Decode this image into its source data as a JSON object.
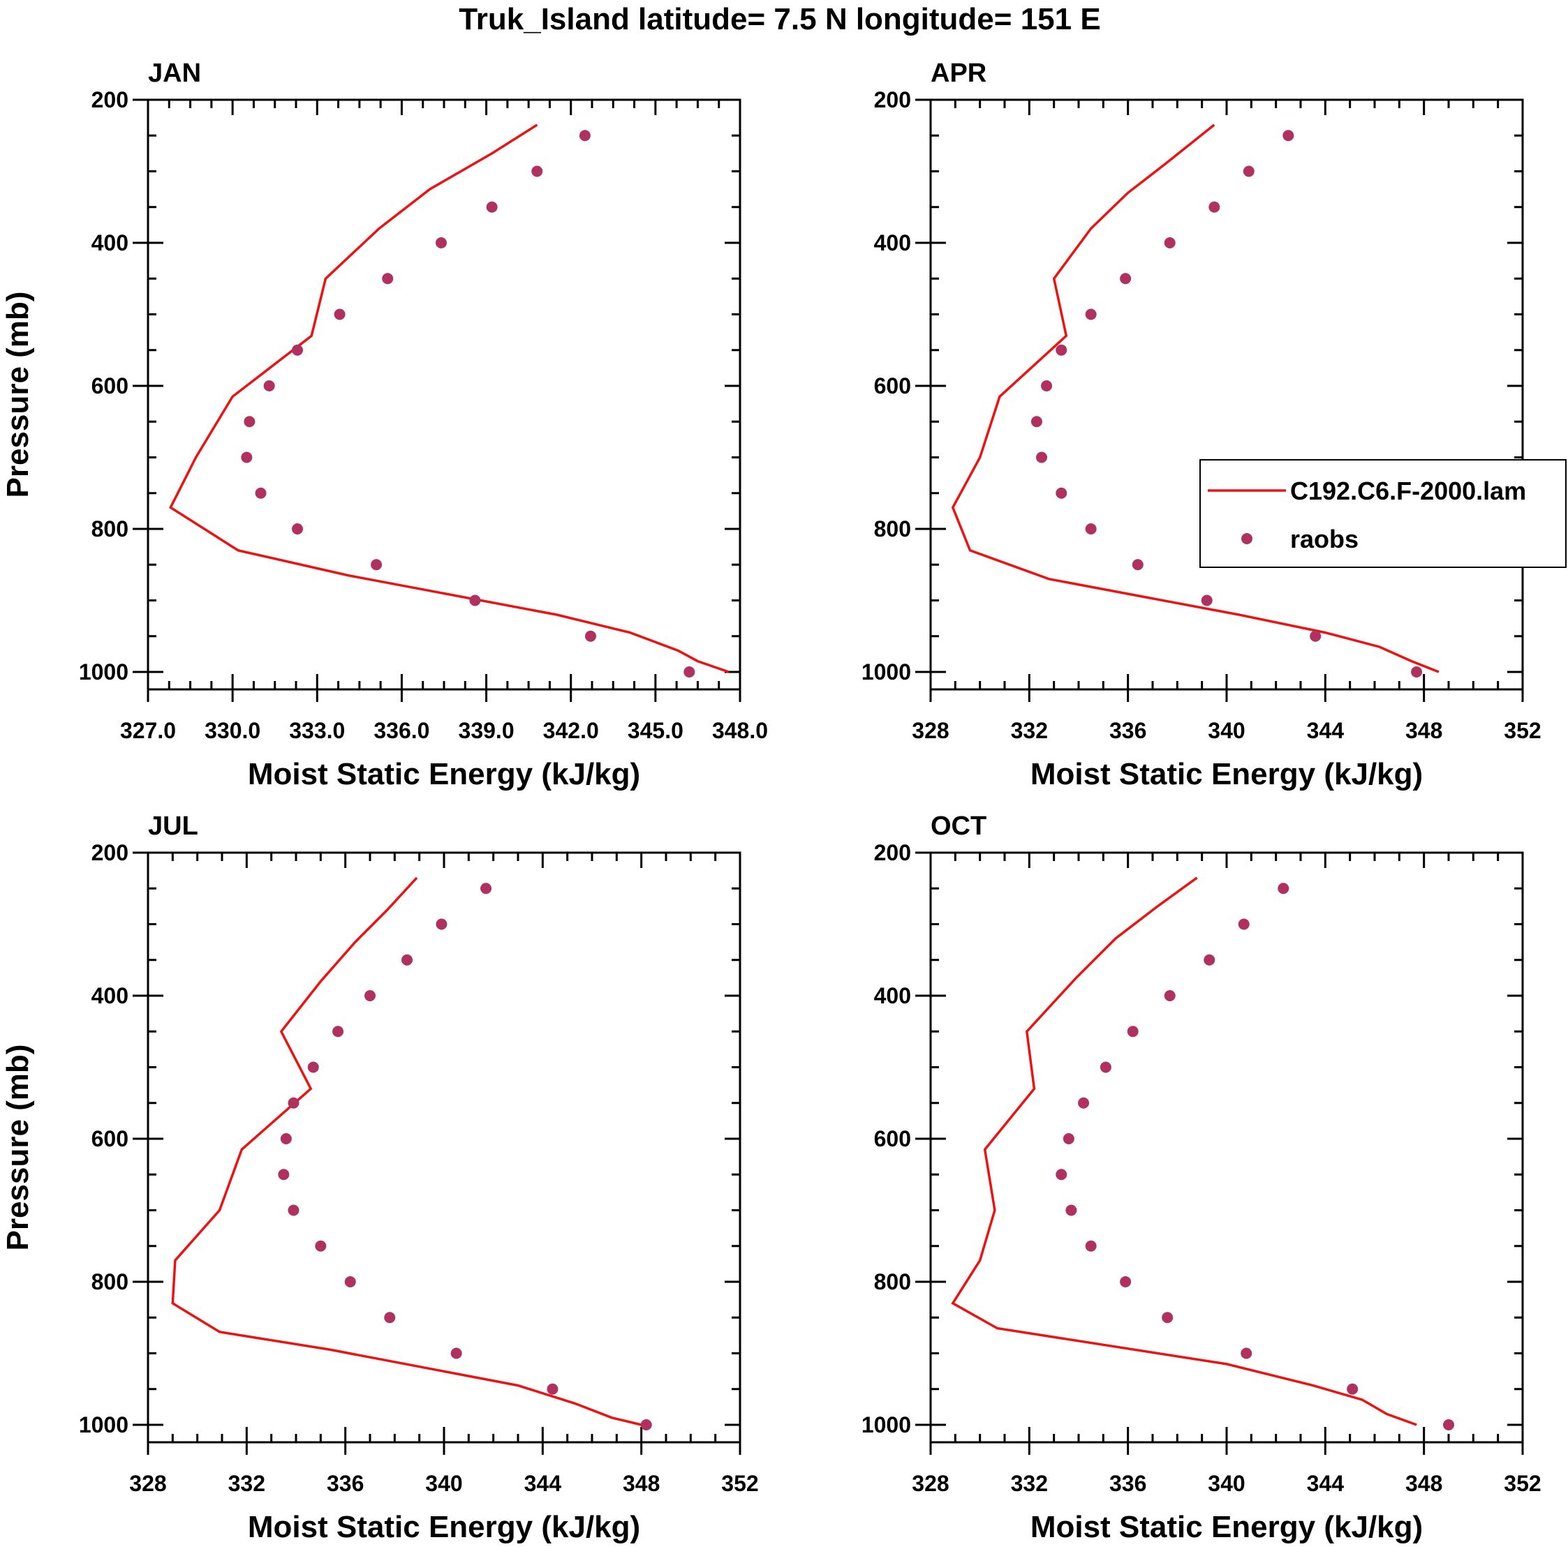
{
  "title": "Truk_Island  latitude= 7.5 N longitude= 151 E",
  "colors": {
    "model": "#ee1111",
    "obs": "#b03060",
    "axis": "#000000"
  },
  "legend": {
    "model_label": "C192.C6.F-2000.lam",
    "obs_label": "raobs",
    "location": "right side of APR panel"
  },
  "chart_data": [
    {
      "type": "line",
      "panel": "JAN",
      "xlabel": "Moist Static Energy (kJ/kg)",
      "ylabel": "Pressure (mb)",
      "xlim": [
        327.0,
        348.0
      ],
      "xticks": [
        327,
        330,
        333,
        336,
        339,
        342,
        345,
        348
      ],
      "xtick_labels": [
        "327.0",
        "330.0",
        "333.0",
        "336.0",
        "339.0",
        "342.0",
        "345.0",
        "348.0"
      ],
      "ylim": [
        1000,
        200
      ],
      "yticks": [
        200,
        400,
        600,
        800,
        1000
      ],
      "ytick_labels": [
        "200",
        "400",
        "600",
        "800",
        "1000"
      ],
      "series": [
        {
          "name": "C192.C6.F-2000.lam",
          "kind": "line",
          "x": [
            340.8,
            339.2,
            337.0,
            335.2,
            333.3,
            332.8,
            330.0,
            328.7,
            327.8,
            330.2,
            334.1,
            341.5,
            344.1,
            345.8,
            346.5,
            347.6
          ],
          "y": [
            235,
            275,
            325,
            380,
            450,
            530,
            615,
            700,
            770,
            830,
            865,
            920,
            945,
            970,
            985,
            1000
          ]
        },
        {
          "name": "raobs",
          "kind": "scatter",
          "x": [
            342.5,
            340.8,
            339.2,
            337.4,
            335.5,
            333.8,
            332.3,
            331.3,
            330.6,
            330.5,
            331.0,
            332.3,
            335.1,
            338.6,
            342.7,
            346.2
          ],
          "y": [
            250,
            300,
            350,
            400,
            450,
            500,
            550,
            600,
            650,
            700,
            750,
            800,
            850,
            900,
            950,
            1000
          ]
        }
      ]
    },
    {
      "type": "line",
      "panel": "APR",
      "xlabel": "Moist Static Energy (kJ/kg)",
      "ylabel": "",
      "xlim": [
        328,
        352
      ],
      "xticks": [
        328,
        332,
        336,
        340,
        344,
        348,
        352
      ],
      "xtick_labels": [
        "328",
        "332",
        "336",
        "340",
        "344",
        "348",
        "352"
      ],
      "ylim": [
        1000,
        200
      ],
      "yticks": [
        200,
        400,
        600,
        800,
        1000
      ],
      "ytick_labels": [
        "200",
        "400",
        "600",
        "800",
        "1000"
      ],
      "series": [
        {
          "name": "C192.C6.F-2000.lam",
          "kind": "line",
          "x": [
            339.5,
            337.5,
            336.0,
            334.5,
            333.0,
            333.5,
            330.8,
            330.0,
            328.9,
            329.6,
            332.8,
            340.5,
            344.0,
            346.2,
            347.5,
            348.6
          ],
          "y": [
            235,
            290,
            330,
            380,
            450,
            530,
            615,
            700,
            770,
            830,
            870,
            920,
            945,
            965,
            985,
            1000
          ]
        },
        {
          "name": "raobs",
          "kind": "scatter",
          "x": [
            342.5,
            340.9,
            339.5,
            337.7,
            335.9,
            334.5,
            333.3,
            332.7,
            332.3,
            332.5,
            333.3,
            334.5,
            336.4,
            339.2,
            343.6,
            347.7
          ],
          "y": [
            250,
            300,
            350,
            400,
            450,
            500,
            550,
            600,
            650,
            700,
            750,
            800,
            850,
            900,
            950,
            1000
          ]
        }
      ]
    },
    {
      "type": "line",
      "panel": "JUL",
      "xlabel": "Moist Static Energy (kJ/kg)",
      "ylabel": "Pressure (mb)",
      "xlim": [
        328,
        352
      ],
      "xticks": [
        328,
        332,
        336,
        340,
        344,
        348,
        352
      ],
      "xtick_labels": [
        "328",
        "332",
        "336",
        "340",
        "344",
        "348",
        "352"
      ],
      "ylim": [
        1000,
        200
      ],
      "yticks": [
        200,
        400,
        600,
        800,
        1000
      ],
      "ytick_labels": [
        "200",
        "400",
        "600",
        "800",
        "1000"
      ],
      "series": [
        {
          "name": "C192.C6.F-2000.lam",
          "kind": "line",
          "x": [
            338.9,
            337.7,
            336.4,
            335.0,
            333.4,
            334.6,
            331.8,
            330.9,
            329.1,
            329.0,
            330.9,
            335.4,
            343.0,
            345.3,
            346.8,
            348.0
          ],
          "y": [
            235,
            280,
            325,
            380,
            450,
            530,
            615,
            700,
            770,
            830,
            870,
            895,
            945,
            970,
            990,
            1000
          ]
        },
        {
          "name": "raobs",
          "kind": "scatter",
          "x": [
            341.7,
            339.9,
            338.5,
            337.0,
            335.7,
            334.7,
            333.9,
            333.6,
            333.5,
            333.9,
            335.0,
            336.2,
            337.8,
            340.5,
            344.4,
            348.2
          ],
          "y": [
            250,
            300,
            350,
            400,
            450,
            500,
            550,
            600,
            650,
            700,
            750,
            800,
            850,
            900,
            950,
            1000
          ]
        }
      ]
    },
    {
      "type": "line",
      "panel": "OCT",
      "xlabel": "Moist Static Energy (kJ/kg)",
      "ylabel": "",
      "xlim": [
        328,
        352
      ],
      "xticks": [
        328,
        332,
        336,
        340,
        344,
        348,
        352
      ],
      "xtick_labels": [
        "328",
        "332",
        "336",
        "340",
        "344",
        "348",
        "352"
      ],
      "ylim": [
        1000,
        200
      ],
      "yticks": [
        200,
        400,
        600,
        800,
        1000
      ],
      "ytick_labels": [
        "200",
        "400",
        "600",
        "800",
        "1000"
      ],
      "series": [
        {
          "name": "C192.C6.F-2000.lam",
          "kind": "line",
          "x": [
            338.8,
            337.2,
            335.5,
            333.9,
            331.9,
            332.2,
            330.2,
            330.6,
            330.0,
            328.9,
            330.7,
            340.0,
            343.5,
            345.5,
            346.5,
            347.7
          ],
          "y": [
            235,
            275,
            320,
            375,
            450,
            530,
            615,
            700,
            770,
            830,
            865,
            915,
            945,
            965,
            985,
            1000
          ]
        },
        {
          "name": "raobs",
          "kind": "scatter",
          "x": [
            342.3,
            340.7,
            339.3,
            337.7,
            336.2,
            335.1,
            334.2,
            333.6,
            333.3,
            333.7,
            334.5,
            335.9,
            337.6,
            340.8,
            345.1,
            349.0
          ],
          "y": [
            250,
            300,
            350,
            400,
            450,
            500,
            550,
            600,
            650,
            700,
            750,
            800,
            850,
            900,
            950,
            1000
          ]
        }
      ]
    }
  ]
}
